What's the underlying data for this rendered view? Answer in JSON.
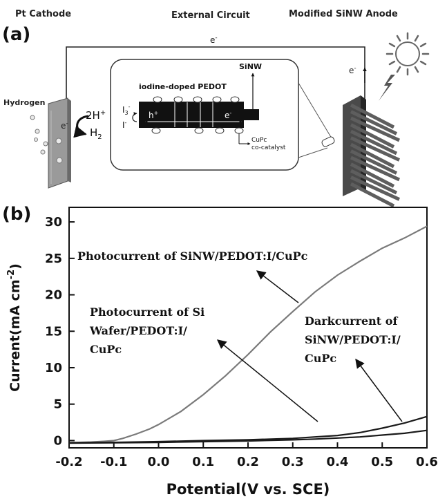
{
  "panel_a": {
    "label": "(a)",
    "cathode_label": "Pt Cathode",
    "circuit_label": "External Circuit",
    "anode_label": "Modified SiNW  Anode",
    "electron": "e",
    "electron_sup": "-",
    "hydrogen_label": "Hydrogen",
    "cathode_electron": "e",
    "reactant_main": "2H",
    "reactant_sup": "+",
    "product_main": "H",
    "product_sub": "2",
    "inset": {
      "sinw": "SiNW",
      "pedot": "iodine-doped PEDOT",
      "hole": "h",
      "hole_sup": "+",
      "electron": "e",
      "electron_sup": "-",
      "triiodide": "I",
      "triiodide_sub": "3",
      "triiodide_sup": "-",
      "iodide": "I",
      "iodide_sup": "-",
      "catalyst_line1": "CuPc",
      "catalyst_line2": "co-catalyst"
    }
  },
  "panel_b": {
    "label": "(b)",
    "annotations": {
      "photo_sinw": "Photocurrent of SiNW/PEDOT:I/CuPc",
      "photo_si_1": "Photocurrent of Si",
      "photo_si_2": "Wafer/PEDOT:I/",
      "photo_si_3": "CuPc",
      "dark_1": "Darkcurrent of",
      "dark_2": "SiNW/PEDOT:I/",
      "dark_3": "CuPc"
    }
  },
  "chart_data": {
    "type": "line",
    "title": "",
    "xlabel": "Potential(V vs. SCE)",
    "ylabel_main": "Current(mA cm",
    "ylabel_sup": "-2",
    "ylabel_close": ")",
    "xlim": [
      -0.2,
      0.6
    ],
    "ylim": [
      -1,
      32
    ],
    "xticks": [
      -0.2,
      -0.1,
      0.0,
      0.1,
      0.2,
      0.3,
      0.4,
      0.5,
      0.6
    ],
    "xtick_labels": [
      "-0.2",
      "-0.1",
      "0.0",
      "0.1",
      "0.2",
      "0.3",
      "0.4",
      "0.5",
      "0.6"
    ],
    "yticks": [
      0,
      5,
      10,
      15,
      20,
      25,
      30
    ],
    "ytick_labels": [
      "0",
      "5",
      "10",
      "15",
      "20",
      "25",
      "30"
    ],
    "grid": false,
    "legend": "none",
    "series": [
      {
        "color": "#7a7a7a",
        "x": [
          -0.2,
          -0.15,
          -0.12,
          -0.1,
          -0.08,
          -0.05,
          -0.02,
          0.0,
          0.05,
          0.1,
          0.15,
          0.2,
          0.25,
          0.3,
          0.35,
          0.4,
          0.45,
          0.5,
          0.55,
          0.6
        ],
        "y": [
          -0.3,
          -0.2,
          -0.1,
          0.0,
          0.3,
          0.9,
          1.6,
          2.2,
          4.0,
          6.3,
          8.9,
          11.8,
          14.9,
          17.7,
          20.4,
          22.7,
          24.6,
          26.4,
          27.8,
          29.4
        ]
      },
      {
        "color": "#1a1a1a",
        "x": [
          -0.2,
          -0.1,
          0.0,
          0.1,
          0.2,
          0.3,
          0.35,
          0.4,
          0.45,
          0.5,
          0.55,
          0.6
        ],
        "y": [
          -0.3,
          -0.25,
          -0.15,
          0.0,
          0.1,
          0.3,
          0.5,
          0.7,
          1.1,
          1.7,
          2.4,
          3.3
        ]
      },
      {
        "color": "#1a1a1a",
        "x": [
          -0.2,
          -0.1,
          0.0,
          0.1,
          0.2,
          0.3,
          0.35,
          0.4,
          0.45,
          0.5,
          0.55,
          0.6
        ],
        "y": [
          -0.35,
          -0.3,
          -0.25,
          -0.15,
          -0.05,
          0.1,
          0.2,
          0.35,
          0.5,
          0.75,
          1.0,
          1.4
        ]
      }
    ]
  }
}
